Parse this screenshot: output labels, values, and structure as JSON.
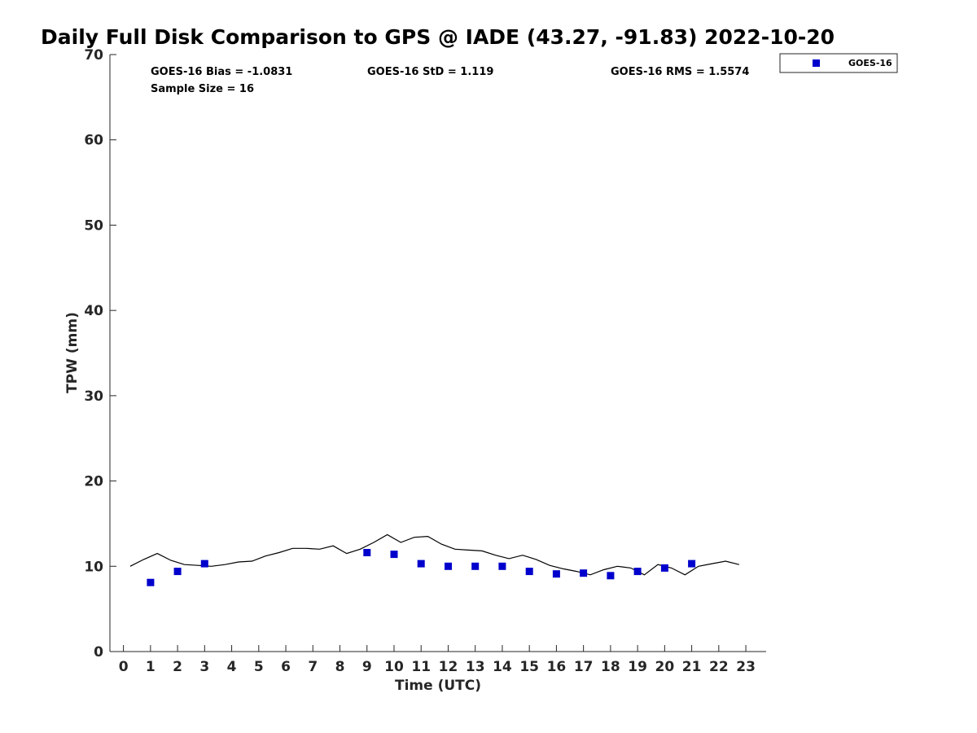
{
  "chart_data": {
    "type": "scatter",
    "title": "Daily Full Disk Comparison to GPS @ IADE (43.27, -91.83) 2022-10-20",
    "xlabel": "Time (UTC)",
    "ylabel": "TPW (mm)",
    "xlim": [
      -0.5,
      23.75
    ],
    "ylim": [
      0,
      70
    ],
    "xticks": [
      0,
      1,
      2,
      3,
      4,
      5,
      6,
      7,
      8,
      9,
      10,
      11,
      12,
      13,
      14,
      15,
      16,
      17,
      18,
      19,
      20,
      21,
      22,
      23
    ],
    "yticks": [
      0,
      10,
      20,
      30,
      40,
      50,
      60,
      70
    ],
    "grid": false,
    "legend_position": "top-right",
    "legend": [
      "GOES-16"
    ],
    "stats": {
      "bias": "GOES-16 Bias = -1.0831",
      "std": "GOES-16 StD = 1.119",
      "rms": "GOES-16 RMS = 1.5574",
      "sample": "Sample Size = 16"
    },
    "series": [
      {
        "name": "GOES-16",
        "color": "#0000cc",
        "marker": "square",
        "x": [
          1,
          2,
          3,
          9,
          10,
          11,
          12,
          13,
          14,
          15,
          16,
          17,
          18,
          19,
          20,
          21
        ],
        "y": [
          8.1,
          9.4,
          10.3,
          11.6,
          11.4,
          10.3,
          10.0,
          10.0,
          10.0,
          9.4,
          9.1,
          9.2,
          8.9,
          9.4,
          9.8,
          10.3
        ]
      },
      {
        "color": "#000000",
        "marker": "none",
        "x": [
          0.25,
          0.75,
          1.25,
          1.75,
          2.25,
          2.75,
          3.25,
          3.75,
          4.25,
          4.75,
          5.25,
          5.75,
          6.25,
          6.75,
          7.25,
          7.75,
          8.25,
          8.75,
          9.25,
          9.75,
          10.25,
          10.75,
          11.25,
          11.75,
          12.25,
          12.75,
          13.25,
          13.75,
          14.25,
          14.75,
          15.25,
          15.75,
          16.25,
          16.75,
          17.25,
          17.75,
          18.25,
          18.75,
          19.25,
          19.75,
          20.25,
          20.75,
          21.25,
          21.75,
          22.25,
          22.75
        ],
        "y": [
          10.0,
          10.8,
          11.5,
          10.7,
          10.2,
          10.1,
          10.0,
          10.2,
          10.5,
          10.6,
          11.2,
          11.6,
          12.1,
          12.1,
          12.0,
          12.4,
          11.5,
          12.0,
          12.8,
          13.7,
          12.8,
          13.4,
          13.5,
          12.6,
          12.0,
          11.9,
          11.8,
          11.3,
          10.9,
          11.3,
          10.8,
          10.1,
          9.7,
          9.4,
          9.0,
          9.6,
          10.0,
          9.8,
          9.0,
          10.2,
          9.8,
          9.0,
          10.0,
          10.3,
          10.6,
          10.2
        ]
      }
    ]
  }
}
